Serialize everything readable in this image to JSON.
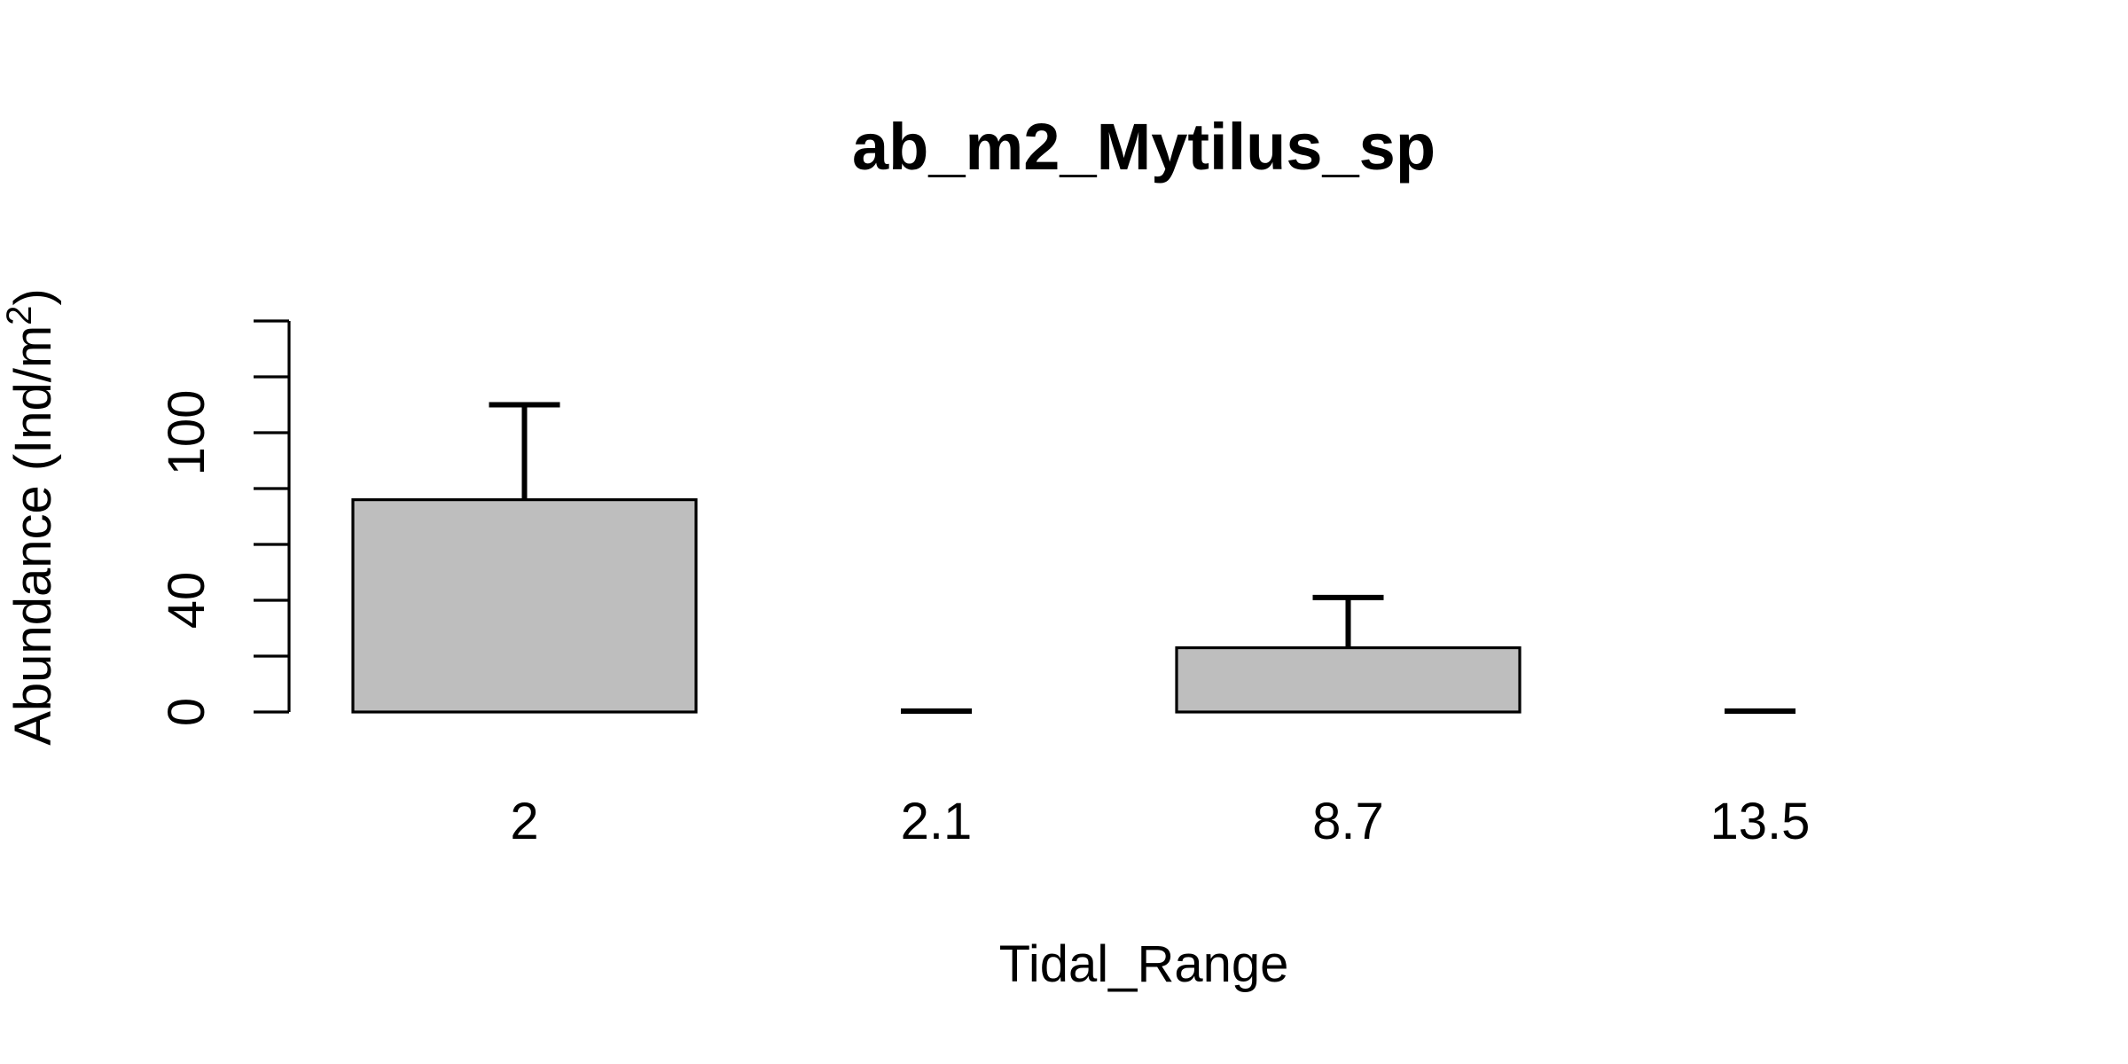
{
  "chart_data": {
    "type": "bar",
    "title": "ab_m2_Mytilus_sp",
    "xlabel": "Tidal_Range",
    "ylabel": {
      "text": "Abundance (Ind/m",
      "superscript": "2",
      "suffix": ")"
    },
    "categories": [
      "2",
      "2.1",
      "8.7",
      "13.5"
    ],
    "values": [
      76,
      0,
      23,
      0
    ],
    "error_upper": [
      110,
      0,
      41,
      0
    ],
    "ylim": [
      0,
      140
    ],
    "y_ticks": [
      0,
      20,
      40,
      60,
      80,
      100,
      120,
      140
    ],
    "y_tick_labels": [
      "0",
      "",
      "40",
      "",
      "",
      "100",
      "",
      ""
    ],
    "grid": false,
    "legend": "none",
    "colors": {
      "bar_fill": "#bebebe",
      "bar_stroke": "#000000"
    }
  }
}
